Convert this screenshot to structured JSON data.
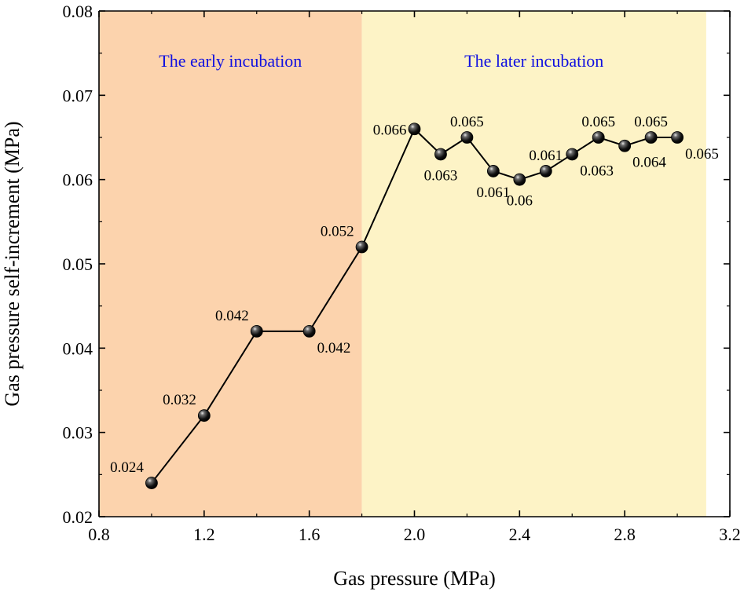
{
  "chart_data": {
    "type": "line",
    "title": "",
    "xlabel": "Gas pressure (MPa)",
    "ylabel": "Gas pressure self-increment (MPa)",
    "xlim": [
      0.8,
      3.2
    ],
    "ylim": [
      0.02,
      0.08
    ],
    "xticks": [
      "0.8",
      "1.2",
      "1.6",
      "2.0",
      "2.4",
      "2.8",
      "3.2"
    ],
    "yticks": [
      "0.02",
      "0.03",
      "0.04",
      "0.05",
      "0.06",
      "0.07",
      "0.08"
    ],
    "grid": false,
    "series": [
      {
        "name": "Gas pressure self-increment",
        "x": [
          1.0,
          1.2,
          1.4,
          1.6,
          1.8,
          2.0,
          2.1,
          2.2,
          2.3,
          2.4,
          2.5,
          2.6,
          2.7,
          2.8,
          2.9,
          3.0
        ],
        "y": [
          0.024,
          0.032,
          0.042,
          0.042,
          0.052,
          0.066,
          0.063,
          0.065,
          0.061,
          0.06,
          0.061,
          0.063,
          0.065,
          0.064,
          0.065,
          0.065
        ],
        "labels": [
          "0.024",
          "0.032",
          "0.042",
          "0.042",
          "0.052",
          "0.066",
          "0.063",
          "0.065",
          "0.061",
          "0.06",
          "0.061",
          "0.063",
          "0.065",
          "0.064",
          "0.065",
          "0.065"
        ],
        "label_positions": [
          "top-left",
          "top-left",
          "top-left",
          "bottom-right",
          "top-left",
          "left",
          "bottom",
          "top",
          "bottom",
          "bottom",
          "top",
          "bottom-right",
          "top",
          "bottom-right",
          "top",
          "bottom-right"
        ]
      }
    ],
    "regions": [
      {
        "name": "The early incubation",
        "x_range": [
          0.8,
          1.8
        ],
        "color": "#fcd3ad",
        "label_color": "#1010e0"
      },
      {
        "name": "The later incubation",
        "x_range": [
          1.8,
          3.11
        ],
        "color": "#fdf3c6",
        "label_color": "#1010e0"
      }
    ]
  }
}
